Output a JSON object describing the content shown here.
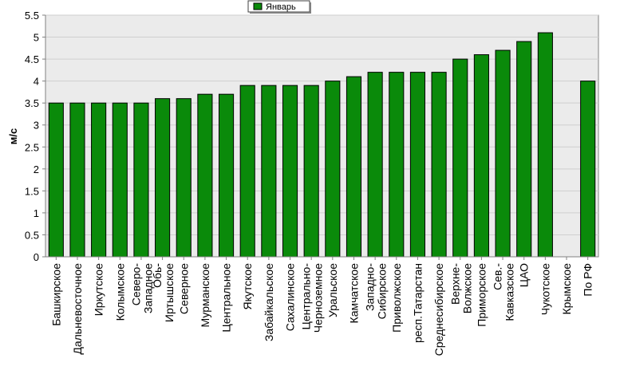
{
  "chart_data": {
    "type": "bar",
    "title": "",
    "xlabel": "",
    "ylabel": "м/с",
    "ylim": [
      0,
      5.5
    ],
    "yticks": [
      "0",
      "0.5",
      "1",
      "1.5",
      "2",
      "2.5",
      "3",
      "3.5",
      "4",
      "4.5",
      "5",
      "5.5"
    ],
    "grid": true,
    "legend_position": "top-center",
    "series": [
      {
        "name": "Январь",
        "color": "#0a8a0a",
        "values": [
          3.5,
          3.5,
          3.5,
          3.5,
          3.5,
          3.6,
          3.6,
          3.7,
          3.7,
          3.9,
          3.9,
          3.9,
          3.9,
          4.0,
          4.1,
          4.2,
          4.2,
          4.2,
          4.2,
          4.5,
          4.6,
          4.7,
          4.9,
          5.1,
          null,
          4.0
        ]
      }
    ],
    "categories": [
      "Башкирское",
      "Дальневосточное",
      "Иркутское",
      "Колымское",
      "Северо-Западное",
      "Обь-Иртышское",
      "Северное",
      "Мурманское",
      "Центральное",
      "Якутское",
      "Забайкальское",
      "Сахалинское",
      "Центрально-Черноземное",
      "Уральское",
      "Камчатское",
      "Западно-Сибирское",
      "Приволжское",
      "респ.Татарстан",
      "Среднесибирское",
      "Верхне-Волжское",
      "Приморское",
      "Сев.-Кавказское",
      "ЦАО",
      "Чукотское",
      "Крымское",
      "По РФ"
    ]
  }
}
